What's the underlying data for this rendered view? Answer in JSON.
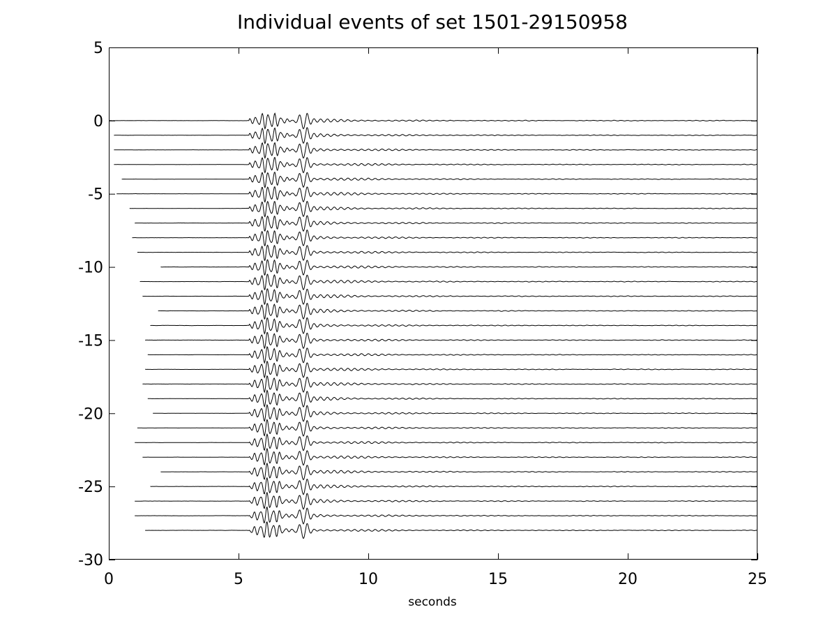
{
  "chart_data": {
    "type": "line",
    "title": "Individual events of set 1501-29150958",
    "xlabel": "seconds",
    "ylabel": "",
    "xlim": [
      0,
      25
    ],
    "ylim": [
      -30,
      5
    ],
    "xticks": [
      0,
      5,
      10,
      15,
      20,
      25
    ],
    "yticks": [
      5,
      0,
      -5,
      -10,
      -15,
      -20,
      -25,
      -30
    ],
    "grid": false,
    "legend": "none",
    "line_color": "#000000",
    "series_count": 29,
    "series_baselines": [
      0,
      -1,
      -2,
      -3,
      -4,
      -5,
      -6,
      -7,
      -8,
      -9,
      -10,
      -11,
      -12,
      -13,
      -14,
      -15,
      -16,
      -17,
      -18,
      -19,
      -20,
      -21,
      -22,
      -23,
      -24,
      -25,
      -26,
      -27,
      -28
    ],
    "series_start_seconds": [
      0.0,
      0.2,
      0.2,
      0.2,
      0.5,
      0.3,
      0.8,
      1.0,
      0.9,
      1.1,
      2.0,
      1.2,
      1.3,
      1.9,
      1.6,
      1.4,
      1.5,
      1.4,
      1.3,
      1.5,
      1.7,
      1.1,
      1.0,
      1.3,
      2.0,
      1.6,
      1.0,
      1.0,
      1.4
    ],
    "series_end_seconds": [
      25,
      25,
      25,
      25,
      25,
      25,
      25,
      25,
      25,
      25,
      25,
      25,
      25,
      25,
      25,
      25,
      25,
      25,
      25,
      25,
      25,
      25,
      25,
      25,
      25,
      25,
      25,
      25,
      25
    ],
    "wave_onset_seconds": 5.6,
    "wave_peak_seconds": [
      5.9,
      7.5
    ],
    "wave_peak_amplitude": 0.55,
    "coda_end_seconds": 25
  }
}
